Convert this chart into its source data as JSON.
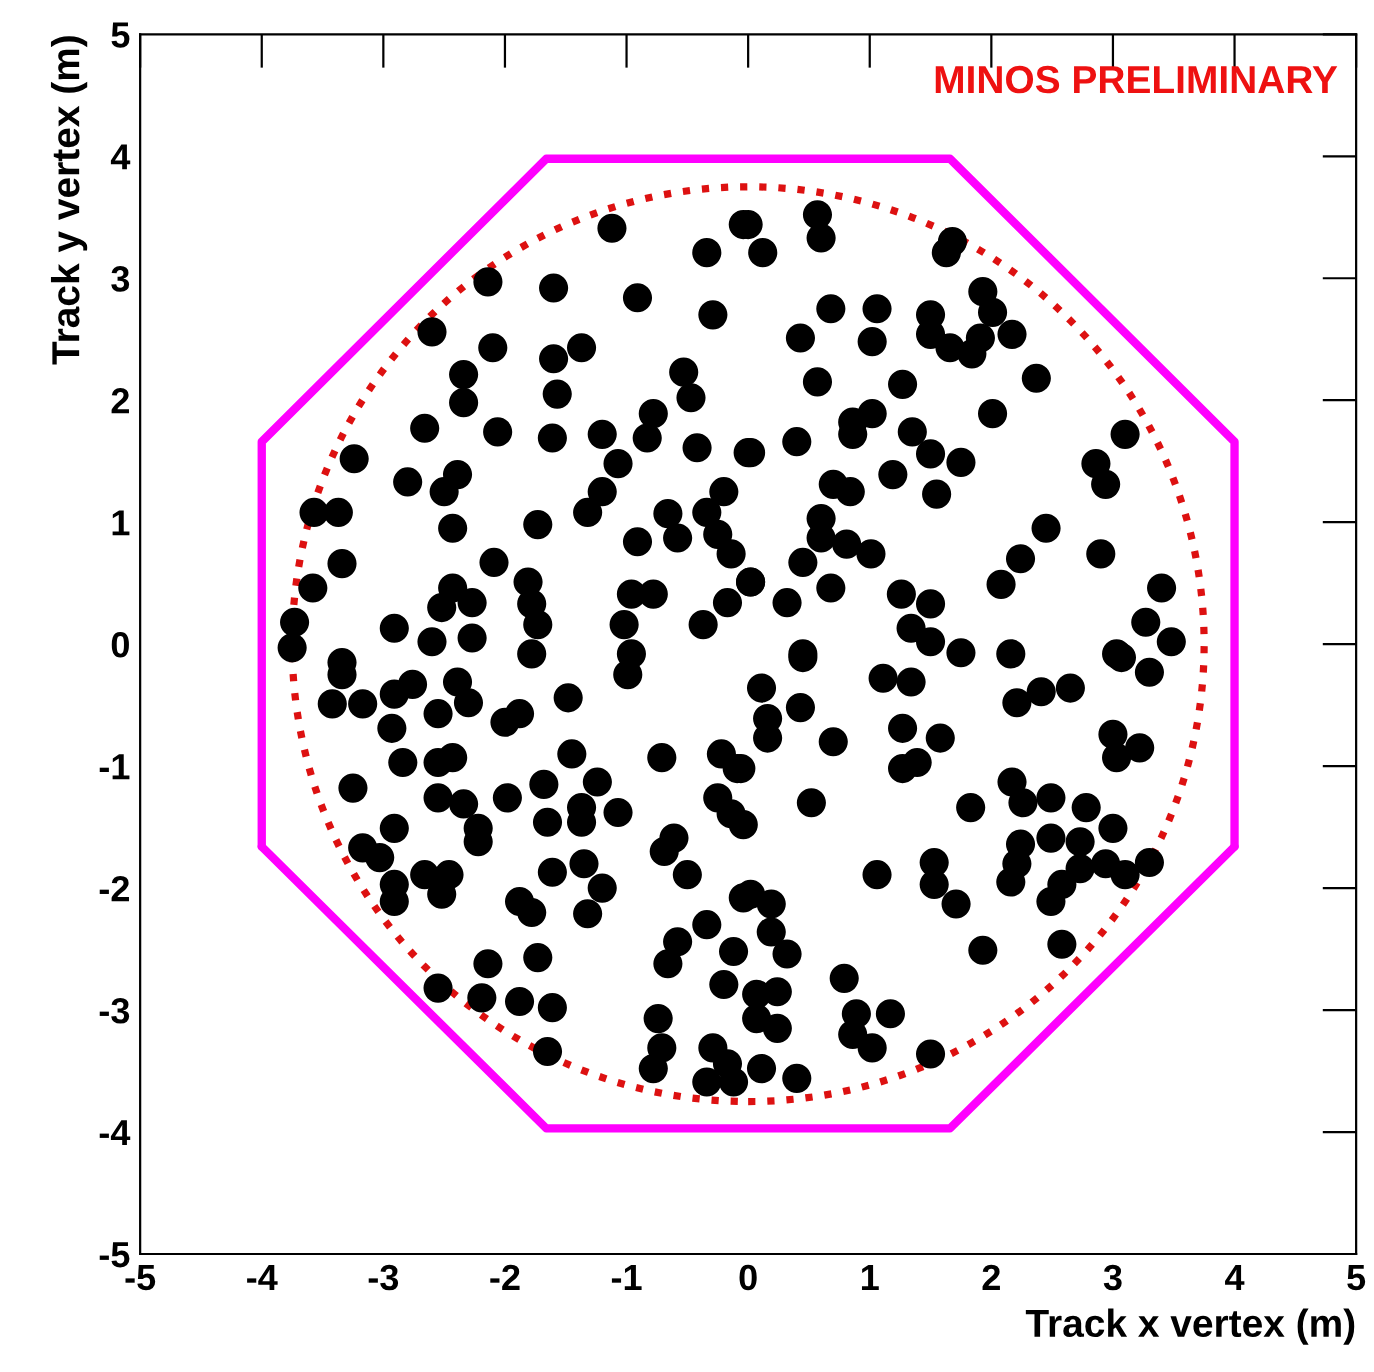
{
  "chart_data": {
    "type": "scatter",
    "xlabel": "Track x vertex (m)",
    "ylabel": "Track y vertex (m)",
    "annotations": [
      "MINOS PRELIMINARY"
    ],
    "xlim": [
      -5,
      5
    ],
    "ylim": [
      -5,
      5
    ],
    "xticks": [
      -5,
      -4,
      -3,
      -2,
      -1,
      0,
      1,
      2,
      3,
      4,
      5
    ],
    "yticks": [
      -5,
      -4,
      -3,
      -2,
      -1,
      0,
      1,
      2,
      3,
      4,
      5
    ],
    "grid": false,
    "series": [
      {
        "type": "scatter",
        "color": "#000000",
        "marker": "circle",
        "x": [
          -1.12,
          -2.14,
          -2.6,
          -1.6,
          -0.91,
          -0.34,
          -0.04,
          -0.29,
          -2.1,
          -2.34,
          -2.34,
          -1.6,
          -1.37,
          -1.57,
          -0.53,
          -0.47,
          -2.66,
          -2.06,
          -1.61,
          -1.2,
          -0.78,
          -0.83,
          -0.42,
          0,
          -3.24,
          -2.8,
          -2.39,
          -2.5,
          -1.07,
          -1.2,
          -1.32,
          -0.2,
          -0.34,
          -3.57,
          -3.37,
          -2.43,
          -1.73,
          -0.66,
          -0.58,
          -0.91,
          -0.25,
          -0.14,
          -3.34,
          -2.09,
          -3.58,
          -2.43,
          -2.52,
          -2.27,
          -1.81,
          -1.78,
          -1.73,
          -0.96,
          -0.78,
          -1.02,
          -0.37,
          -0.17,
          0.02,
          -3.73,
          -2.91,
          -2.6,
          -2.27,
          -3.75,
          -3.34,
          -1.78,
          -0.96,
          0,
          0.12,
          0.57,
          0.6,
          1.68,
          1.63,
          1.93,
          2.01,
          0.68,
          1.06,
          1.5,
          0.43,
          1.02,
          1.5,
          1.66,
          1.84,
          1.91,
          2.17,
          2.37,
          0.57,
          1.27,
          2.01,
          0.86,
          1.02,
          0.86,
          1.35,
          0.02,
          0.4,
          1.5,
          1.75,
          1.19,
          3.1,
          2.86,
          2.94,
          0.7,
          0.84,
          1.55,
          0.6,
          0.6,
          0.81,
          1.01,
          0.45,
          0.02,
          2.45,
          2.9,
          2.24,
          2.08,
          0.68,
          0.32,
          1.26,
          1.5,
          1.34,
          1.5,
          3.4,
          3.27,
          3.48,
          0.45,
          1.75,
          2.16,
          3.03,
          -3.34,
          -3.42,
          -3.17,
          -2.91,
          -2.76,
          -2.39,
          -2.3,
          -2.55,
          -2.93,
          -2.0,
          -1.88,
          -1.48,
          -0.99,
          -2.84,
          -2.55,
          -2.43,
          -1.45,
          -0.71,
          -0.22,
          -0.09,
          -3.25,
          -2.55,
          -2.34,
          -1.98,
          -1.68,
          -1.24,
          -1.37,
          -1.07,
          -1.65,
          -1.37,
          -0.25,
          -0.14,
          -2.91,
          -2.22,
          -2.22,
          -0.61,
          -0.69,
          -3.17,
          -3.03,
          -2.66,
          -2.46,
          -2.52,
          -1.61,
          -1.35,
          -1.2,
          -0.5,
          -2.91,
          -2.91,
          -1.88,
          -1.78,
          -1.32,
          -0.04,
          -0.34,
          -0.58,
          -0.12,
          -0.66,
          -2.14,
          -1.73,
          -0.2,
          -2.55,
          -2.19,
          -1.88,
          -1.61,
          -0.74,
          -0.71,
          -0.78,
          -1.65,
          -0.29,
          -0.17,
          -0.34,
          -0.12,
          0.45,
          0.11,
          0.16,
          0.16,
          0.43,
          0.7,
          1.11,
          1.34,
          1.27,
          1.58,
          1.27,
          1.39,
          2.21,
          2.41,
          2.65,
          3.0,
          3.22,
          3.03,
          3.07,
          3.3,
          -0.06,
          0.52,
          1.83,
          2.17,
          2.26,
          2.49,
          2.78,
          3.0,
          -0.04,
          2.24,
          2.49,
          2.73,
          2.21,
          2.16,
          2.73,
          2.94,
          3.1,
          3.3,
          1.53,
          1.53,
          1.06,
          2.58,
          2.49,
          1.71,
          0.02,
          0.19,
          0.19,
          0.32,
          2.58,
          1.93,
          0.79,
          0.07,
          0.24,
          0.07,
          0.24,
          0.89,
          1.17,
          0.86,
          1.02,
          0.11,
          0.4,
          1.5
        ],
        "values": [
          3.41,
          2.97,
          2.56,
          2.92,
          2.84,
          3.21,
          3.44,
          2.7,
          2.43,
          2.21,
          1.98,
          2.34,
          2.43,
          2.05,
          2.23,
          2.02,
          1.77,
          1.74,
          1.69,
          1.72,
          1.89,
          1.69,
          1.61,
          1.57,
          1.52,
          1.33,
          1.39,
          1.25,
          1.48,
          1.25,
          1.08,
          1.25,
          1.08,
          1.08,
          1.08,
          0.95,
          0.98,
          1.07,
          0.87,
          0.84,
          0.9,
          0.74,
          0.66,
          0.67,
          0.46,
          0.46,
          0.3,
          0.34,
          0.51,
          0.33,
          0.16,
          0.41,
          0.41,
          0.16,
          0.16,
          0.34,
          0.51,
          0.18,
          0.13,
          0.02,
          0.05,
          -0.03,
          -0.15,
          -0.08,
          -0.08,
          3.44,
          3.21,
          3.52,
          3.33,
          3.3,
          3.21,
          2.89,
          2.72,
          2.75,
          2.75,
          2.7,
          2.51,
          2.48,
          2.54,
          2.43,
          2.38,
          2.51,
          2.54,
          2.18,
          2.15,
          2.13,
          1.89,
          1.82,
          1.89,
          1.72,
          1.74,
          1.57,
          1.66,
          1.56,
          1.49,
          1.39,
          1.72,
          1.48,
          1.31,
          1.31,
          1.25,
          1.23,
          1.03,
          0.87,
          0.82,
          0.74,
          0.67,
          0.51,
          0.95,
          0.74,
          0.7,
          0.49,
          0.46,
          0.34,
          0.41,
          0.33,
          0.13,
          0.02,
          0.46,
          0.18,
          0.02,
          -0.08,
          -0.07,
          -0.08,
          -0.08,
          -0.25,
          -0.49,
          -0.49,
          -0.41,
          -0.33,
          -0.31,
          -0.48,
          -0.57,
          -0.69,
          -0.64,
          -0.57,
          -0.44,
          -0.25,
          -0.97,
          -0.97,
          -0.93,
          -0.9,
          -0.93,
          -0.9,
          -1.02,
          -1.18,
          -1.26,
          -1.31,
          -1.26,
          -1.15,
          -1.13,
          -1.34,
          -1.38,
          -1.46,
          -1.46,
          -1.26,
          -1.39,
          -1.51,
          -1.51,
          -1.62,
          -1.59,
          -1.7,
          -1.67,
          -1.75,
          -1.89,
          -1.89,
          -2.05,
          -1.87,
          -1.8,
          -2.0,
          -1.89,
          -1.97,
          -2.11,
          -2.11,
          -2.2,
          -2.21,
          -2.08,
          -2.3,
          -2.44,
          -2.52,
          -2.62,
          -2.62,
          -2.57,
          -2.79,
          -2.82,
          -2.9,
          -2.93,
          -2.98,
          -3.07,
          -3.31,
          -3.48,
          -3.34,
          -3.31,
          -3.44,
          -3.59,
          -3.59,
          -0.11,
          -0.36,
          -0.61,
          -0.77,
          -0.52,
          -0.8,
          -0.28,
          -0.31,
          -0.69,
          -0.77,
          -1.02,
          -0.97,
          -0.48,
          -0.39,
          -0.36,
          -0.74,
          -0.85,
          -0.93,
          -0.11,
          -0.23,
          -1.02,
          -1.3,
          -1.34,
          -1.13,
          -1.3,
          -1.26,
          -1.34,
          -1.51,
          -1.48,
          -1.64,
          -1.59,
          -1.62,
          -1.8,
          -1.95,
          -1.84,
          -1.8,
          -1.89,
          -1.79,
          -1.79,
          -1.97,
          -1.89,
          -1.97,
          -2.11,
          -2.13,
          -2.05,
          -2.13,
          -2.36,
          -2.54,
          -2.46,
          -2.51,
          -2.74,
          -2.87,
          -2.85,
          -3.07,
          -3.15,
          -3.03,
          -3.03,
          -3.2,
          -3.31,
          -3.48,
          -3.56,
          -3.36
        ]
      },
      {
        "type": "line",
        "color": "#ff00ff",
        "line_style": "solid",
        "marker": "none",
        "x": [
          -4,
          -4,
          -1.66,
          1.66,
          4,
          4
        ],
        "values": [
          -1.66,
          1.66,
          3.98,
          3.98,
          1.66,
          -1.66
        ]
      },
      {
        "type": "line",
        "color": "#ff00ff",
        "line_style": "solid",
        "marker": "none",
        "x": [
          -4,
          -1.66,
          1.66,
          4
        ],
        "values": [
          -1.66,
          -3.97,
          -3.97,
          -1.66
        ]
      }
    ]
  }
}
